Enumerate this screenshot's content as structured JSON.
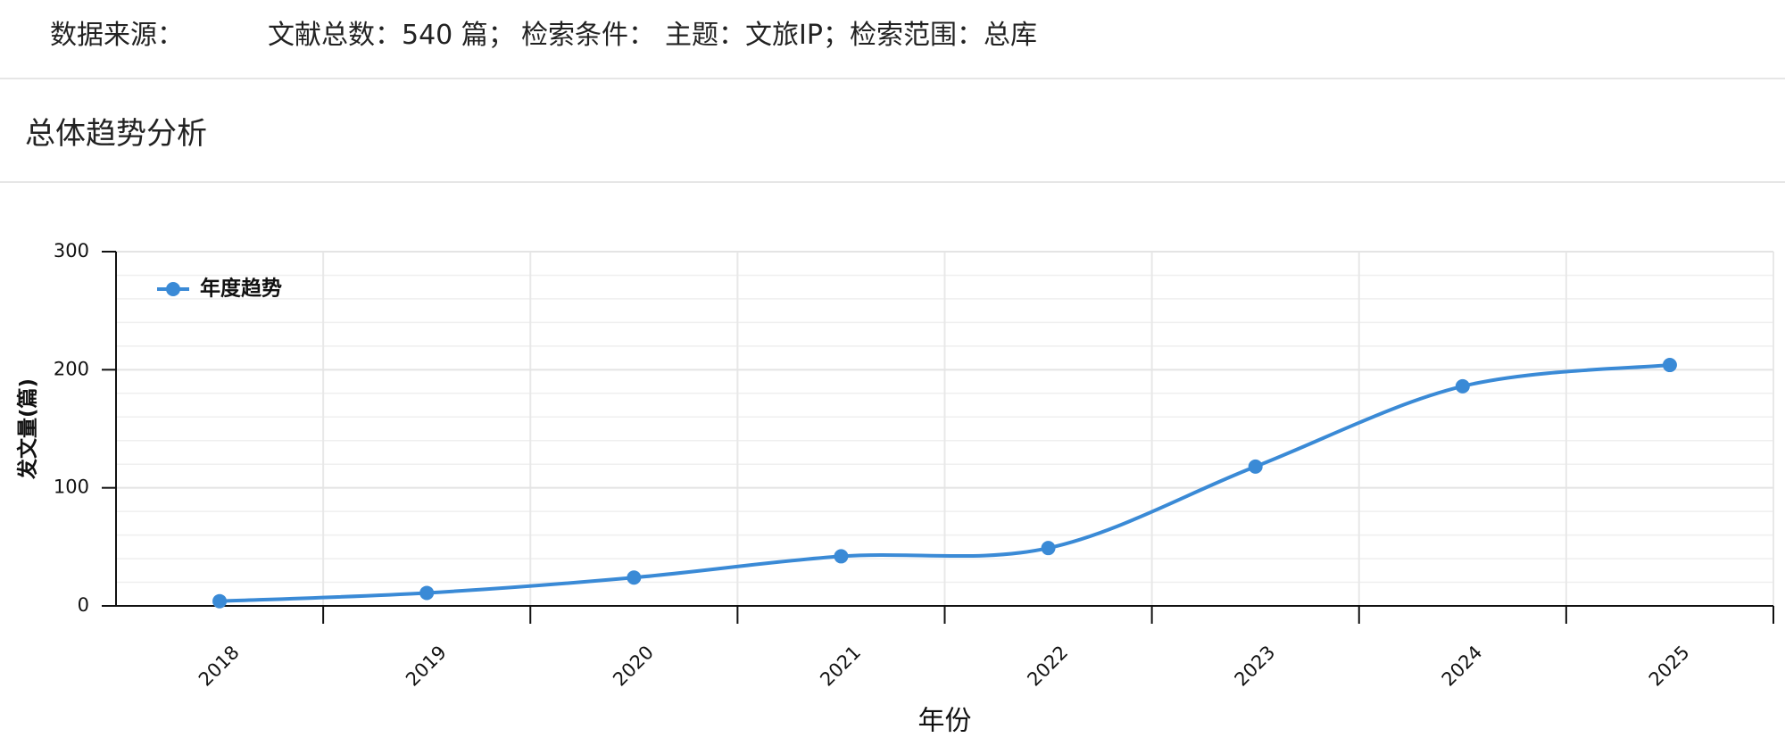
{
  "header": {
    "label": "数据来源：",
    "items": [
      "文献总数：540 篇；",
      "检索条件：",
      "主题：文旅IP；检索范围：总库"
    ]
  },
  "section_title": "总体趋势分析",
  "chart_data": {
    "type": "line",
    "categories": [
      "2018",
      "2019",
      "2020",
      "2021",
      "2022",
      "2023",
      "2024",
      "2025"
    ],
    "series": [
      {
        "name": "年度趋势",
        "color": "#3a8ad6",
        "values": [
          4,
          11,
          24,
          42,
          49,
          118,
          186,
          204
        ]
      }
    ],
    "ylim": [
      0,
      300
    ],
    "yticks": [
      0,
      100,
      200,
      300
    ],
    "x_label": "年份",
    "y_label": "发文量(篇)",
    "grid": true,
    "legend": "top-left",
    "smooth": true
  }
}
